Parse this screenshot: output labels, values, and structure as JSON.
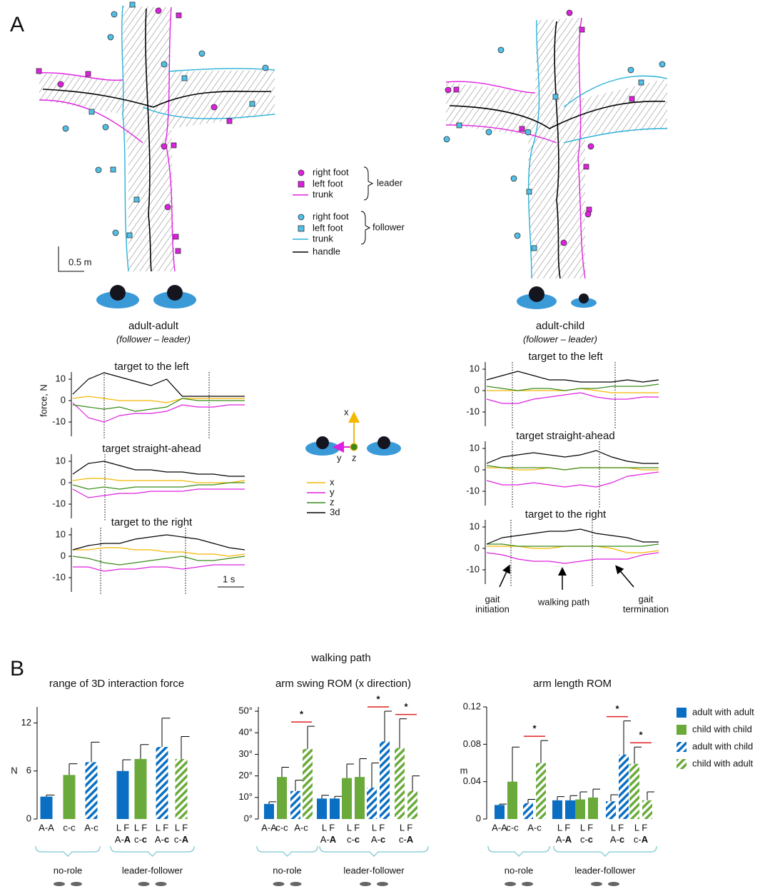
{
  "panel_label_a": "A",
  "panel_label_b": "B",
  "panel_a": {
    "scale_bar": "0.5 m",
    "pairs": [
      {
        "name": "adult-adult",
        "roles": "(follower – leader)"
      },
      {
        "name": "adult-child",
        "roles": "(follower – leader)"
      }
    ],
    "legend": {
      "leader": {
        "label": "leader",
        "items": [
          "right foot",
          "left foot",
          "trunk"
        ]
      },
      "follower": {
        "label": "follower",
        "items": [
          "right foot",
          "left foot",
          "trunk"
        ]
      },
      "handle": "handle"
    },
    "axes_icon": [
      "x",
      "y",
      "z"
    ],
    "time_scale": "1 s",
    "force_legend": [
      {
        "name": "x",
        "color": "#f5b800"
      },
      {
        "name": "y",
        "color": "#e020e0"
      },
      {
        "name": "z",
        "color": "#3a8a1a"
      },
      {
        "name": "3d",
        "color": "#000000"
      }
    ],
    "annotations": [
      [
        "gait",
        "initiation"
      ],
      [
        "walking path"
      ],
      [
        "gait",
        "termination"
      ]
    ]
  },
  "panel_b": {
    "header": "walking path",
    "legend": [
      {
        "name": "adult with adult",
        "color": "#0a6fc2",
        "hatch": false
      },
      {
        "name": "child with child",
        "color": "#6aaa3a",
        "hatch": false
      },
      {
        "name": "adult with child",
        "color": "#0a6fc2",
        "hatch": true
      },
      {
        "name": "child with adult",
        "color": "#6aaa3a",
        "hatch": true
      }
    ]
  },
  "chart_data": [
    {
      "type": "line",
      "title": "target to the left",
      "ylabel": "force, N",
      "ylim": [
        -15,
        15
      ],
      "yticks": [
        -10,
        0,
        10
      ],
      "series": [
        {
          "color": "#f5b800",
          "values": [
            1,
            2,
            1,
            0,
            0,
            0,
            -1,
            1,
            1,
            1,
            1,
            1
          ]
        },
        {
          "color": "#e020e0",
          "values": [
            -1,
            -8,
            -10,
            -7,
            -6,
            -6,
            -5,
            -2,
            -3,
            -3,
            -2,
            -2
          ]
        },
        {
          "color": "#3a8a1a",
          "values": [
            -2,
            -3,
            -4,
            -3,
            -5,
            -4,
            -3,
            1,
            0,
            0,
            0,
            0
          ]
        },
        {
          "color": "#000000",
          "values": [
            3,
            10,
            13,
            11,
            9,
            7,
            10,
            2,
            2,
            2,
            2,
            2
          ]
        }
      ]
    },
    {
      "type": "line",
      "title": "target straight-ahead",
      "ylim": [
        -15,
        15
      ],
      "yticks": [
        -10,
        0,
        10
      ],
      "series": [
        {
          "color": "#f5b800",
          "values": [
            1,
            2,
            2,
            1,
            1,
            1,
            1,
            1,
            0,
            0,
            0,
            1
          ]
        },
        {
          "color": "#e020e0",
          "values": [
            -3,
            -7,
            -6,
            -5,
            -5,
            -4,
            -4,
            -4,
            -3,
            -3,
            -3,
            -3
          ]
        },
        {
          "color": "#3a8a1a",
          "values": [
            -1,
            -3,
            -2,
            -3,
            -2,
            -2,
            -2,
            -2,
            -1,
            -1,
            0,
            0
          ]
        },
        {
          "color": "#000000",
          "values": [
            4,
            9,
            10,
            8,
            6,
            6,
            5,
            5,
            4,
            4,
            3,
            3
          ]
        }
      ]
    },
    {
      "type": "line",
      "title": "target to the right",
      "ylim": [
        -15,
        15
      ],
      "yticks": [
        -10,
        0,
        10
      ],
      "series": [
        {
          "color": "#f5b800",
          "values": [
            3,
            3,
            4,
            4,
            3,
            3,
            2,
            2,
            1,
            1,
            0,
            1
          ]
        },
        {
          "color": "#e020e0",
          "values": [
            -5,
            -5,
            -7,
            -6,
            -6,
            -5,
            -5,
            -6,
            -5,
            -4,
            -4,
            -4
          ]
        },
        {
          "color": "#3a8a1a",
          "values": [
            0,
            -1,
            -3,
            -4,
            -3,
            -2,
            -1,
            0,
            -2,
            -2,
            -1,
            0
          ]
        },
        {
          "color": "#000000",
          "values": [
            3,
            5,
            6,
            6,
            8,
            9,
            10,
            9,
            8,
            6,
            4,
            3
          ]
        }
      ]
    },
    {
      "type": "line",
      "title": "target to the left",
      "ylim": [
        -15,
        15
      ],
      "yticks": [
        -10,
        0,
        10
      ],
      "series": [
        {
          "color": "#f5b800",
          "values": [
            0,
            0,
            0,
            0,
            0,
            0,
            1,
            0,
            -1,
            -1,
            -1,
            -1
          ]
        },
        {
          "color": "#e020e0",
          "values": [
            -4,
            -6,
            -6,
            -4,
            -3,
            -2,
            -1,
            -3,
            -4,
            -4,
            -3,
            -3
          ]
        },
        {
          "color": "#3a8a1a",
          "values": [
            2,
            1,
            0,
            1,
            1,
            0,
            1,
            1,
            2,
            2,
            2,
            3
          ]
        },
        {
          "color": "#000000",
          "values": [
            5,
            7,
            9,
            7,
            5,
            5,
            4,
            4,
            4,
            5,
            4,
            5
          ]
        }
      ]
    },
    {
      "type": "line",
      "title": "target straight-ahead",
      "ylim": [
        -15,
        15
      ],
      "yticks": [
        -10,
        0,
        10
      ],
      "series": [
        {
          "color": "#f5b800",
          "values": [
            1,
            1,
            0,
            0,
            1,
            0,
            1,
            1,
            1,
            1,
            0,
            0
          ]
        },
        {
          "color": "#e020e0",
          "values": [
            -5,
            -7,
            -7,
            -6,
            -7,
            -8,
            -7,
            -8,
            -6,
            -3,
            -2,
            -1
          ]
        },
        {
          "color": "#3a8a1a",
          "values": [
            2,
            1,
            1,
            1,
            1,
            0,
            1,
            1,
            1,
            1,
            1,
            1
          ]
        },
        {
          "color": "#000000",
          "values": [
            3,
            6,
            7,
            8,
            7,
            6,
            7,
            9,
            6,
            4,
            3,
            3
          ]
        }
      ]
    },
    {
      "type": "line",
      "title": "target to the right",
      "ylim": [
        -15,
        15
      ],
      "yticks": [
        -10,
        0,
        10
      ],
      "series": [
        {
          "color": "#f5b800",
          "values": [
            1,
            1,
            1,
            0,
            0,
            1,
            1,
            1,
            0,
            -2,
            -2,
            -1
          ]
        },
        {
          "color": "#e020e0",
          "values": [
            -2,
            -3,
            -5,
            -6,
            -6,
            -7,
            -6,
            -5,
            -5,
            -5,
            -3,
            -2
          ]
        },
        {
          "color": "#3a8a1a",
          "values": [
            2,
            2,
            1,
            1,
            1,
            1,
            1,
            1,
            1,
            1,
            1,
            2
          ]
        },
        {
          "color": "#000000",
          "values": [
            2,
            5,
            6,
            7,
            8,
            8,
            9,
            7,
            6,
            5,
            3,
            3
          ]
        }
      ]
    },
    {
      "type": "bar",
      "title": "range of 3D interaction force",
      "ylabel": "N",
      "ylim": [
        0,
        14
      ],
      "yticks": [
        0,
        6,
        12
      ],
      "kinds": [
        0,
        1,
        2,
        0,
        1,
        2,
        3
      ],
      "values": [
        2.8,
        5.5,
        7.1,
        6.0,
        7.5,
        9.0,
        7.5
      ],
      "errors": [
        0.2,
        1.4,
        2.5,
        1.4,
        1.8,
        3.6,
        2.8
      ],
      "groups": [
        {
          "name": "no-role",
          "labels": [
            "A-A",
            "c-c",
            "A-c"
          ]
        },
        {
          "name": "leader-follower",
          "pairs": [
            {
              "lf": "L F",
              "prefix": "A-",
              "bold": "A"
            },
            {
              "lf": "L F",
              "prefix": "c-",
              "bold": "c"
            },
            {
              "lf": "L F",
              "prefix": "A-",
              "bold": "c"
            },
            {
              "lf": "L F",
              "prefix": "c-",
              "bold": "A"
            }
          ]
        }
      ],
      "significance": []
    },
    {
      "type": "bar",
      "title": "arm swing ROM (x direction)",
      "ylim": [
        0,
        52
      ],
      "yticks": [
        {
          "value": 0,
          "label": "0°"
        },
        {
          "value": 10,
          "label": "10°"
        },
        {
          "value": 20,
          "label": "20°"
        },
        {
          "value": 30,
          "label": "30°"
        },
        {
          "value": 40,
          "label": "40°"
        },
        {
          "value": 50,
          "label": "50°"
        }
      ],
      "kinds": [
        0,
        1,
        2,
        3,
        0,
        0,
        1,
        1,
        2,
        2,
        3,
        3
      ],
      "values": [
        7,
        19.5,
        13,
        32.5,
        9.5,
        9.5,
        19,
        19.5,
        14.5,
        36,
        33,
        13
      ],
      "errors": [
        1,
        4.5,
        5,
        10.5,
        1.5,
        1,
        6.5,
        8.5,
        11.5,
        14,
        13.5,
        7
      ],
      "groups": [
        {
          "name": "no-role",
          "labels": [
            "A-A",
            "c-c",
            "A-c"
          ]
        },
        {
          "name": "leader-follower",
          "pairs": [
            {
              "lf": "L F",
              "prefix": "A-",
              "bold": "A"
            },
            {
              "lf": "L F",
              "prefix": "c-",
              "bold": "c"
            },
            {
              "lf": "L F",
              "prefix": "A-",
              "bold": "c"
            },
            {
              "lf": "L F",
              "prefix": "c-",
              "bold": "A"
            }
          ]
        }
      ],
      "significance": [
        {
          "bars": [
            2,
            3
          ],
          "label": "*"
        },
        {
          "bars": [
            8,
            9
          ],
          "label": "*"
        },
        {
          "bars": [
            10,
            11
          ],
          "label": "*"
        }
      ]
    },
    {
      "type": "bar",
      "title": "arm length ROM",
      "ylabel": "m",
      "ylim": [
        0,
        0.12
      ],
      "yticks": [
        0,
        0.04,
        0.08,
        0.12
      ],
      "kinds": [
        0,
        1,
        2,
        3,
        0,
        0,
        1,
        1,
        2,
        2,
        3,
        3
      ],
      "values": [
        0.015,
        0.04,
        0.017,
        0.06,
        0.02,
        0.02,
        0.021,
        0.023,
        0.019,
        0.069,
        0.059,
        0.02
      ],
      "errors": [
        0.001,
        0.037,
        0.004,
        0.024,
        0.004,
        0.005,
        0.008,
        0.009,
        0.007,
        0.036,
        0.018,
        0.009
      ],
      "groups": [
        {
          "name": "no-role",
          "labels": [
            "A-A",
            "c-c",
            "A-c"
          ]
        },
        {
          "name": "leader-follower",
          "pairs": [
            {
              "lf": "L F",
              "prefix": "A-",
              "bold": "A"
            },
            {
              "lf": "L F",
              "prefix": "c-",
              "bold": "c"
            },
            {
              "lf": "L F",
              "prefix": "A-",
              "bold": "c"
            },
            {
              "lf": "L F",
              "prefix": "c-",
              "bold": "A"
            }
          ]
        }
      ],
      "significance": [
        {
          "bars": [
            2,
            3
          ],
          "label": "*"
        },
        {
          "bars": [
            8,
            9
          ],
          "label": "*"
        },
        {
          "bars": [
            10,
            11
          ],
          "label": "*"
        }
      ]
    }
  ]
}
